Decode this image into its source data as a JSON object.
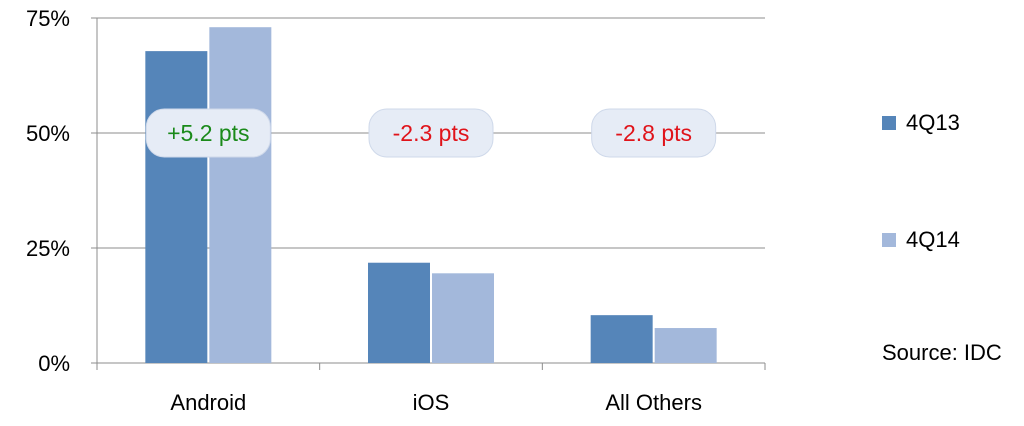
{
  "chart_data": {
    "type": "bar",
    "categories": [
      "Android",
      "iOS",
      "All Others"
    ],
    "series": [
      {
        "name": "4Q13",
        "values": [
          67.8,
          21.8,
          10.4
        ],
        "color": "#5585b9"
      },
      {
        "name": "4Q14",
        "values": [
          73.0,
          19.5,
          7.6
        ],
        "color": "#a3b8db"
      }
    ],
    "ylim": [
      0,
      75
    ],
    "yticks": [
      0,
      25,
      50,
      75
    ],
    "ytick_labels": [
      "0%",
      "25%",
      "50%",
      "75%"
    ],
    "annotations": [
      {
        "category": "Android",
        "text": "+5.2 pts",
        "color": "#1a8a1a"
      },
      {
        "category": "iOS",
        "text": "-2.3 pts",
        "color": "#e0131a"
      },
      {
        "category": "All Others",
        "text": "-2.8 pts",
        "color": "#e0131a"
      }
    ],
    "annotation_level": 50,
    "grid": true,
    "legend_position": "right"
  },
  "legend": {
    "items": [
      {
        "label": "4Q13"
      },
      {
        "label": "4Q14"
      }
    ]
  },
  "source": "Source: IDC"
}
